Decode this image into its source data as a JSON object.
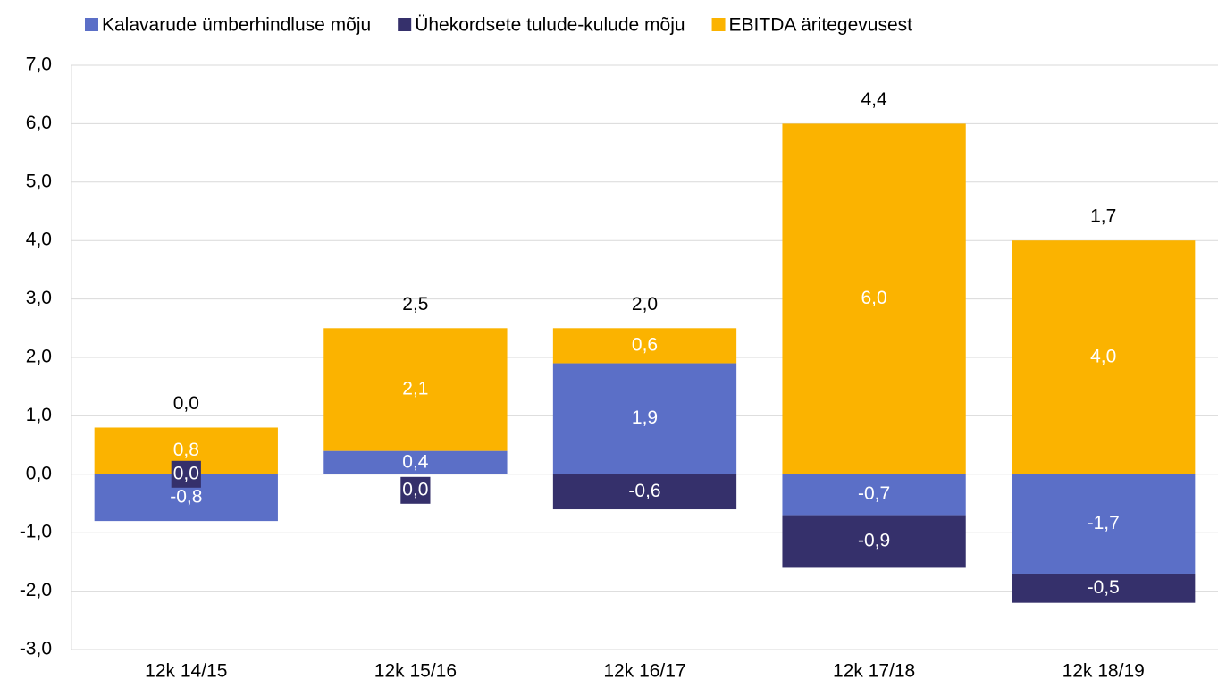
{
  "chart_data": {
    "type": "stacked_bar",
    "categories": [
      "12k 14/15",
      "12k 15/16",
      "12k 16/17",
      "12k 17/18",
      "12k 18/19"
    ],
    "series": [
      {
        "name": "Kalavarude ümberhindluse mõju",
        "color": "#5b6fc7",
        "label_color": "#ffffff",
        "values": [
          -0.8,
          0.4,
          1.9,
          -0.7,
          -1.7
        ],
        "value_labels": [
          "-0,8",
          "0,4",
          "1,9",
          "-0,7",
          "-1,7"
        ]
      },
      {
        "name": "Ühekordsete tulude-kulude mõju",
        "color": "#35306b",
        "label_color": "#ffffff",
        "values": [
          0.0,
          0.0,
          -0.6,
          -0.9,
          -0.5
        ],
        "value_labels": [
          "0,0",
          "0,0",
          "-0,6",
          "-0,9",
          "-0,5"
        ]
      },
      {
        "name": "EBITDA äritegevusest",
        "color": "#fbb300",
        "label_color": "#ffffff",
        "values": [
          0.8,
          2.1,
          0.6,
          6.0,
          4.0
        ],
        "value_labels": [
          "0,8",
          "2,1",
          "0,6",
          "6,0",
          "4,0"
        ]
      }
    ],
    "totals": [
      0.0,
      2.5,
      2.0,
      4.4,
      1.7
    ],
    "total_labels": [
      "0,0",
      "2,5",
      "2,0",
      "4,4",
      "1,7"
    ],
    "ylim": [
      -3,
      7
    ],
    "yticks": [
      {
        "value": -3,
        "label": "-3,0"
      },
      {
        "value": -2,
        "label": "-2,0"
      },
      {
        "value": -1,
        "label": "-1,0"
      },
      {
        "value": 0,
        "label": "0,0"
      },
      {
        "value": 1,
        "label": "1,0"
      },
      {
        "value": 2,
        "label": "2,0"
      },
      {
        "value": 3,
        "label": "3,0"
      },
      {
        "value": 4,
        "label": "4,0"
      },
      {
        "value": 5,
        "label": "5,0"
      },
      {
        "value": 6,
        "label": "6,0"
      },
      {
        "value": 7,
        "label": "7,0"
      }
    ],
    "grid": true,
    "legend": "top"
  }
}
